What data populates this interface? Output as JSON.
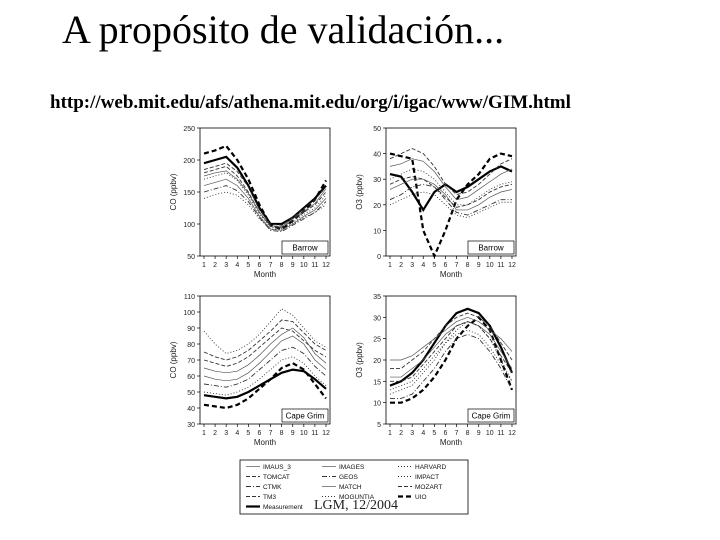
{
  "slide": {
    "title": "A propósito de validación...",
    "url": "http://web.mit.edu/afs/athena.mit.edu/org/i/igac/www/GIM.html",
    "footer": "LGM, 12/2004"
  },
  "chart_data": [
    {
      "type": "line",
      "panel_label": "Barrow",
      "xlabel": "Month",
      "ylabel": "CO (ppbv)",
      "ylim": [
        50,
        250
      ],
      "yticks": [
        50,
        100,
        150,
        200,
        250
      ],
      "x": [
        1,
        2,
        3,
        4,
        5,
        6,
        7,
        8,
        9,
        10,
        11,
        12
      ],
      "series": [
        {
          "values": [
            195,
            200,
            205,
            188,
            160,
            125,
            100,
            100,
            110,
            125,
            140,
            160
          ],
          "style": "bold"
        },
        {
          "values": [
            210,
            215,
            222,
            200,
            170,
            130,
            98,
            92,
            105,
            120,
            138,
            168
          ],
          "style": "boldDash"
        },
        {
          "values": [
            180,
            185,
            190,
            175,
            150,
            118,
            96,
            95,
            105,
            118,
            130,
            150
          ],
          "style": "dash"
        },
        {
          "values": [
            170,
            175,
            180,
            168,
            145,
            115,
            95,
            93,
            102,
            115,
            125,
            145
          ],
          "style": "dot"
        },
        {
          "values": [
            160,
            165,
            170,
            160,
            140,
            112,
            92,
            90,
            100,
            112,
            122,
            140
          ],
          "style": "thin"
        },
        {
          "values": [
            150,
            155,
            160,
            152,
            135,
            110,
            90,
            88,
            98,
            108,
            118,
            135
          ],
          "style": "dashdot"
        },
        {
          "values": [
            175,
            180,
            183,
            170,
            148,
            118,
            97,
            96,
            108,
            120,
            132,
            155
          ],
          "style": "thin"
        },
        {
          "values": [
            140,
            146,
            150,
            145,
            130,
            108,
            92,
            92,
            100,
            110,
            118,
            130
          ],
          "style": "dot"
        },
        {
          "values": [
            185,
            190,
            195,
            182,
            158,
            122,
            100,
            98,
            110,
            124,
            138,
            158
          ],
          "style": "dash"
        }
      ]
    },
    {
      "type": "line",
      "panel_label": "Barrow",
      "xlabel": "Month",
      "ylabel": "O3 (ppbv)",
      "ylim": [
        0,
        50
      ],
      "yticks": [
        0,
        10,
        20,
        30,
        40,
        50
      ],
      "x": [
        1,
        2,
        3,
        4,
        5,
        6,
        7,
        8,
        9,
        10,
        11,
        12
      ],
      "series": [
        {
          "values": [
            32,
            31,
            25,
            18,
            25,
            28,
            25,
            27,
            30,
            33,
            35,
            33
          ],
          "style": "bold"
        },
        {
          "values": [
            40,
            39,
            38,
            10,
            0,
            10,
            22,
            28,
            32,
            38,
            40,
            39
          ],
          "style": "boldDash"
        },
        {
          "values": [
            38,
            40,
            42,
            40,
            35,
            28,
            24,
            25,
            28,
            32,
            36,
            38
          ],
          "style": "dash"
        },
        {
          "values": [
            30,
            32,
            34,
            33,
            30,
            25,
            20,
            20,
            23,
            26,
            28,
            29
          ],
          "style": "dot"
        },
        {
          "values": [
            26,
            28,
            30,
            30,
            28,
            24,
            18,
            18,
            20,
            23,
            25,
            26
          ],
          "style": "thin"
        },
        {
          "values": [
            22,
            24,
            27,
            28,
            27,
            22,
            17,
            16,
            18,
            20,
            22,
            22
          ],
          "style": "dashdot"
        },
        {
          "values": [
            35,
            36,
            38,
            37,
            33,
            27,
            22,
            23,
            26,
            29,
            32,
            34
          ],
          "style": "thin"
        },
        {
          "values": [
            20,
            22,
            24,
            25,
            24,
            20,
            16,
            15,
            17,
            19,
            21,
            21
          ],
          "style": "dot"
        },
        {
          "values": [
            28,
            30,
            31,
            30,
            27,
            23,
            19,
            20,
            22,
            25,
            27,
            28
          ],
          "style": "dash"
        }
      ]
    },
    {
      "type": "line",
      "panel_label": "Cape Grim",
      "xlabel": "Month",
      "ylabel": "CO (ppbv)",
      "ylim": [
        30,
        110
      ],
      "yticks": [
        30,
        40,
        50,
        60,
        70,
        80,
        90,
        100,
        110
      ],
      "x": [
        1,
        2,
        3,
        4,
        5,
        6,
        7,
        8,
        9,
        10,
        11,
        12
      ],
      "series": [
        {
          "values": [
            48,
            47,
            46,
            47,
            50,
            54,
            58,
            62,
            64,
            63,
            58,
            52
          ],
          "style": "bold"
        },
        {
          "values": [
            42,
            41,
            40,
            42,
            46,
            52,
            58,
            65,
            68,
            64,
            55,
            46
          ],
          "style": "boldDash"
        },
        {
          "values": [
            70,
            68,
            66,
            68,
            72,
            78,
            84,
            90,
            88,
            82,
            76,
            72
          ],
          "style": "dash"
        },
        {
          "values": [
            88,
            80,
            74,
            76,
            80,
            86,
            94,
            102,
            98,
            90,
            82,
            78
          ],
          "style": "dot"
        },
        {
          "values": [
            60,
            58,
            57,
            58,
            62,
            68,
            75,
            82,
            85,
            80,
            70,
            64
          ],
          "style": "thin"
        },
        {
          "values": [
            55,
            54,
            53,
            55,
            58,
            64,
            70,
            76,
            78,
            74,
            66,
            60
          ],
          "style": "dashdot"
        },
        {
          "values": [
            65,
            63,
            62,
            63,
            67,
            73,
            80,
            86,
            90,
            84,
            74,
            68
          ],
          "style": "thin"
        },
        {
          "values": [
            50,
            49,
            48,
            50,
            53,
            58,
            64,
            70,
            72,
            68,
            60,
            54
          ],
          "style": "dot"
        },
        {
          "values": [
            75,
            72,
            70,
            72,
            76,
            82,
            88,
            95,
            94,
            87,
            80,
            76
          ],
          "style": "dash"
        }
      ]
    },
    {
      "type": "line",
      "panel_label": "Cape Grim",
      "xlabel": "Month",
      "ylabel": "O3 (ppbv)",
      "ylim": [
        5,
        35
      ],
      "yticks": [
        5,
        10,
        15,
        20,
        25,
        30,
        35
      ],
      "x": [
        1,
        2,
        3,
        4,
        5,
        6,
        7,
        8,
        9,
        10,
        11,
        12
      ],
      "series": [
        {
          "values": [
            14,
            15,
            17,
            20,
            24,
            28,
            31,
            32,
            31,
            28,
            23,
            17
          ],
          "style": "bold"
        },
        {
          "values": [
            10,
            10,
            11,
            13,
            16,
            20,
            25,
            28,
            30,
            27,
            20,
            13
          ],
          "style": "boldDash"
        },
        {
          "values": [
            18,
            18,
            20,
            22,
            25,
            28,
            30,
            31,
            30,
            28,
            24,
            20
          ],
          "style": "dash"
        },
        {
          "values": [
            12,
            13,
            14,
            17,
            20,
            24,
            27,
            29,
            28,
            25,
            20,
            15
          ],
          "style": "dot"
        },
        {
          "values": [
            16,
            16,
            18,
            20,
            23,
            26,
            28,
            29,
            28,
            26,
            22,
            18
          ],
          "style": "thin"
        },
        {
          "values": [
            11,
            11,
            12,
            15,
            18,
            22,
            25,
            26,
            25,
            22,
            18,
            13
          ],
          "style": "dashdot"
        },
        {
          "values": [
            20,
            20,
            21,
            23,
            25,
            27,
            29,
            30,
            29,
            27,
            25,
            22
          ],
          "style": "thin"
        },
        {
          "values": [
            13,
            14,
            15,
            18,
            21,
            24,
            26,
            27,
            26,
            23,
            19,
            15
          ],
          "style": "dot"
        },
        {
          "values": [
            15,
            15,
            16,
            19,
            22,
            25,
            28,
            29,
            28,
            25,
            21,
            17
          ],
          "style": "dash"
        }
      ]
    }
  ],
  "legend": {
    "entries": [
      {
        "label": "IMAUS_3",
        "style": "thin"
      },
      {
        "label": "IMAGES",
        "style": "thin"
      },
      {
        "label": "HARVARD",
        "style": "dot"
      },
      {
        "label": "TOMCAT",
        "style": "dash"
      },
      {
        "label": "GEOS",
        "style": "dashdot"
      },
      {
        "label": "IMPACT",
        "style": "dot"
      },
      {
        "label": "CTMK",
        "style": "dashdot"
      },
      {
        "label": "MATCH",
        "style": "thin"
      },
      {
        "label": "MOZART",
        "style": "dash"
      },
      {
        "label": "TM3",
        "style": "dash"
      },
      {
        "label": "MOGUNTIA",
        "style": "dot"
      },
      {
        "label": "UIO",
        "style": "boldDash"
      },
      {
        "label": "Measurement",
        "style": "bold"
      }
    ]
  }
}
